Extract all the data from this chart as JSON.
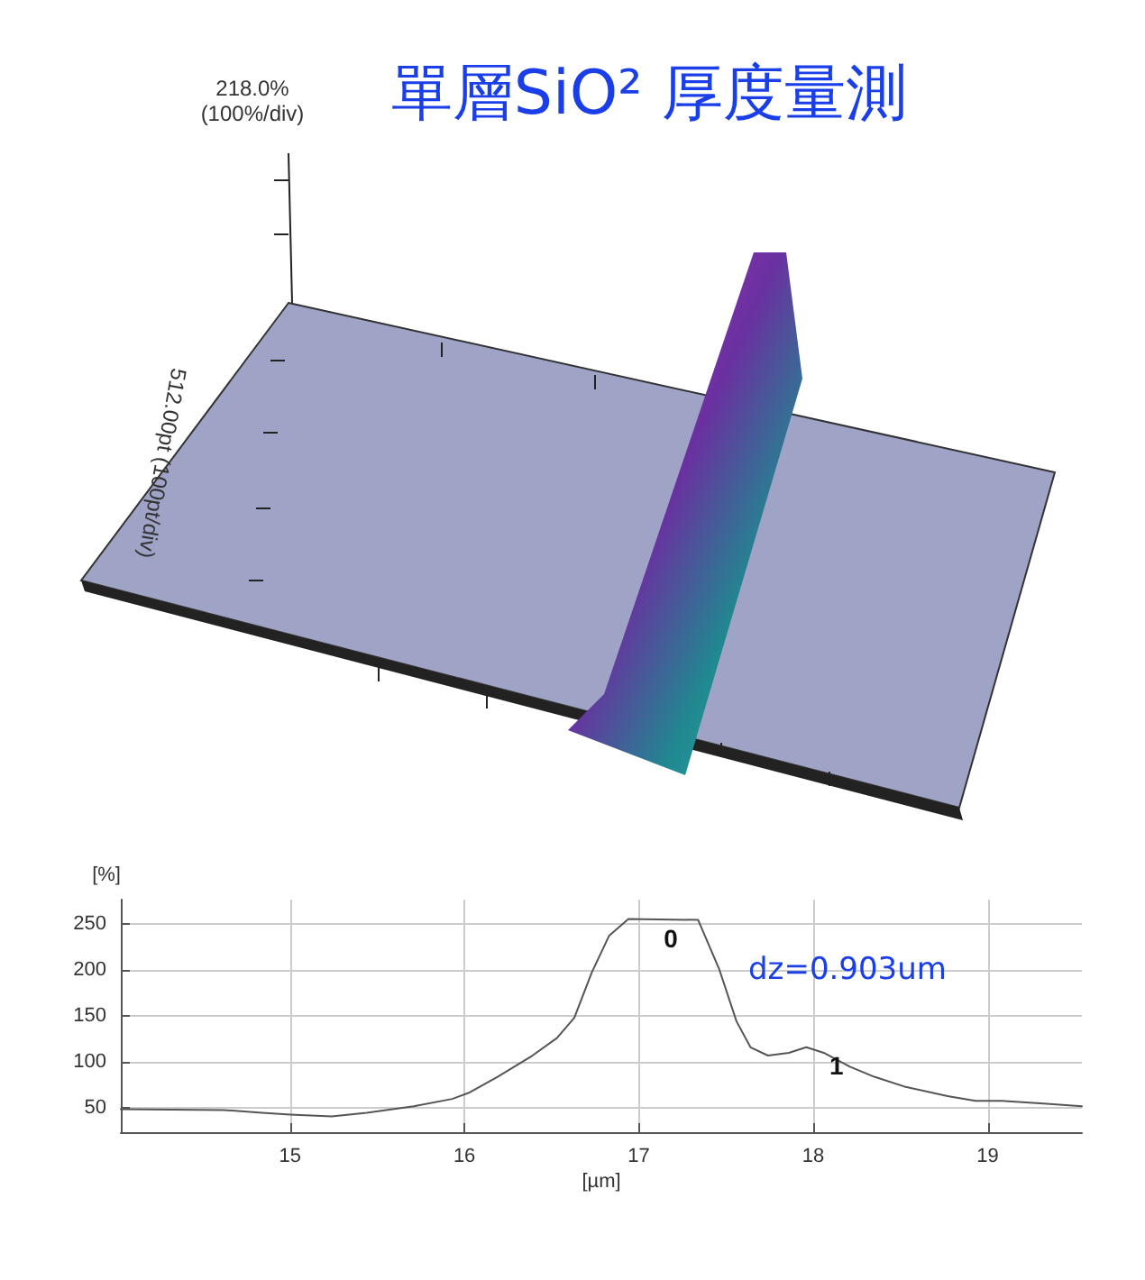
{
  "chart_data": {
    "type": "line",
    "title": "單層SiO² 厚度量測",
    "xlabel": "[µm]",
    "ylabel": "[%]",
    "annotations": [
      "218.0%",
      "(100%/div)",
      "512.00pt (100pt/div)",
      "dz=0.903um",
      {
        "text": "0",
        "x": 17.07,
        "y": 250
      },
      {
        "text": "1",
        "x": 18.02,
        "y": 112
      }
    ],
    "series": [
      {
        "color": "#555555",
        "x": [
          14.03,
          14.62,
          14.84,
          15.0,
          15.24,
          15.44,
          15.71,
          15.93,
          16.03,
          16.19,
          16.39,
          16.53,
          16.63,
          16.73,
          16.83,
          16.94,
          17.34,
          17.46,
          17.56,
          17.64,
          17.74,
          17.86,
          17.96,
          18.06,
          18.21,
          18.35,
          18.53,
          18.77,
          18.93,
          19.08,
          19.32,
          19.54
        ],
        "values": [
          49,
          48,
          45,
          43,
          41,
          45,
          52,
          60,
          67,
          84,
          107,
          126,
          148,
          197,
          237,
          255,
          254,
          201,
          144,
          116,
          107,
          110,
          116,
          110,
          95,
          84,
          73,
          63,
          58,
          58,
          55,
          52
        ]
      }
    ],
    "xlim": [
      14.03,
      19.54
    ],
    "xticks": [
      15,
      16,
      17,
      18,
      19
    ],
    "ylim": [
      24,
      276
    ],
    "yticks": [
      50,
      100,
      150,
      200,
      250
    ],
    "grid": true,
    "marker": "none",
    "line_style": "solid"
  }
}
